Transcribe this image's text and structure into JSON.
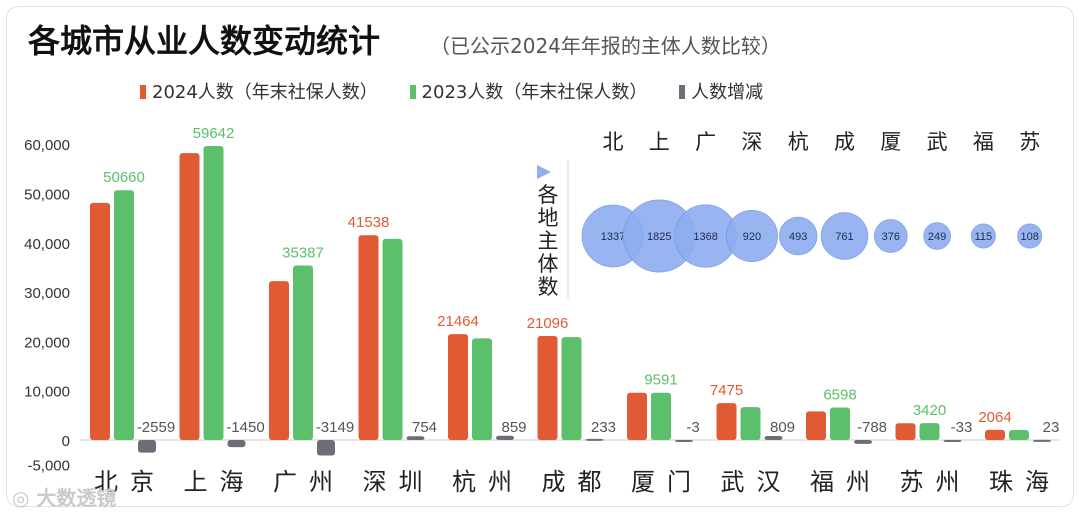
{
  "title": "各城市从业人数变动统计",
  "subtitle": "（已公示2024年年报的主体人数比较）",
  "watermark": "大数透镜",
  "colors": {
    "s2024": "#e05a33",
    "s2023": "#5cbf6b",
    "diff": "#6b6e76",
    "bubble": "#8eaef0",
    "diffLabel": "#555555"
  },
  "legend": [
    {
      "label": "2024人数（年末社保人数）",
      "color": "#e05a33"
    },
    {
      "label": "2023人数（年末社保人数）",
      "color": "#5cbf6b"
    },
    {
      "label": "人数增减",
      "color": "#6b6e76"
    }
  ],
  "chart_data": [
    {
      "type": "bar",
      "categories": [
        "北京",
        "上海",
        "广州",
        "深圳",
        "杭州",
        "成都",
        "厦门",
        "武汉",
        "福州",
        "苏州",
        "珠海"
      ],
      "ylim": [
        -5000,
        65000
      ],
      "yticks": [
        "-5,000",
        "0",
        "10,000",
        "20,000",
        "30,000",
        "40,000",
        "50,000",
        "60,000"
      ],
      "ytick_values": [
        -5000,
        0,
        10000,
        20000,
        30000,
        40000,
        50000,
        60000
      ],
      "grid": false,
      "legend_position": "top",
      "series": [
        {
          "name": "2024人数（年末社保人数）",
          "values": [
            48101,
            58192,
            32238,
            41538,
            21464,
            21096,
            9588,
            7475,
            5810,
            3387,
            2064
          ],
          "labels": [
            null,
            null,
            null,
            "41538",
            "21464",
            "21096",
            null,
            "7475",
            null,
            null,
            "2064"
          ]
        },
        {
          "name": "2023人数（年末社保人数）",
          "values": [
            50660,
            59642,
            35387,
            40784,
            20605,
            20863,
            9591,
            6666,
            6598,
            3420,
            2041
          ],
          "labels": [
            "50660",
            "59642",
            "35387",
            null,
            null,
            null,
            "9591",
            null,
            "6598",
            "3420",
            null
          ]
        },
        {
          "name": "人数增减",
          "values": [
            -2559,
            -1450,
            -3149,
            754,
            859,
            233,
            -3,
            809,
            -788,
            -33,
            23
          ],
          "labels": [
            "-2559",
            "-1450",
            "-3149",
            "754",
            "859",
            "233",
            "-3",
            "809",
            "-788",
            "-33",
            "23"
          ]
        }
      ]
    },
    {
      "type": "scatter",
      "title": "各地主体数",
      "categories": [
        "北",
        "上",
        "广",
        "深",
        "杭",
        "成",
        "厦",
        "武",
        "福",
        "苏"
      ],
      "values": [
        1337,
        1825,
        1368,
        920,
        493,
        761,
        376,
        249,
        115,
        108
      ]
    }
  ]
}
